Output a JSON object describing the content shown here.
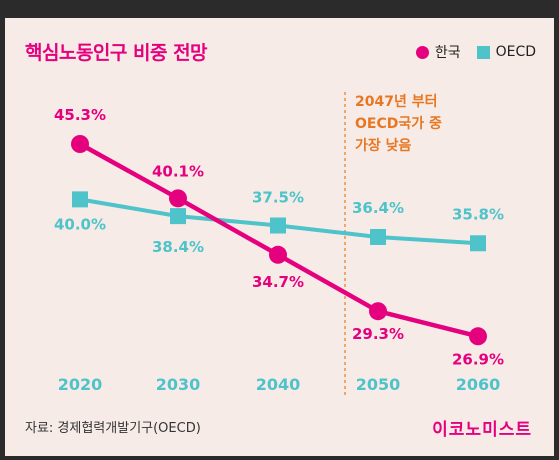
{
  "title": "핵심노동인구 비중 전망",
  "legend": {
    "korea": "한국",
    "oecd": "OECD"
  },
  "annotation": [
    "2047년 부터",
    "OECD국가 중",
    "가장 낮음"
  ],
  "source": "자료: 경제협력개발기구(OECD)",
  "brand": "이코노미스트",
  "colors": {
    "korea": "#e5007e",
    "oecd": "#4ec3c9",
    "annotation": "#e87722",
    "xtick": "#4ec3c9"
  },
  "chart_data": {
    "type": "line",
    "x": [
      "2020",
      "2030",
      "2040",
      "2050",
      "2060"
    ],
    "series": [
      {
        "name": "한국",
        "values": [
          45.3,
          40.1,
          34.7,
          29.3,
          26.9
        ],
        "labels": [
          "45.3%",
          "40.1%",
          "34.7%",
          "29.3%",
          "26.9%"
        ]
      },
      {
        "name": "OECD",
        "values": [
          40.0,
          38.4,
          37.5,
          36.4,
          35.8
        ],
        "labels": [
          "40.0%",
          "38.4%",
          "37.5%",
          "36.4%",
          "35.8%"
        ]
      }
    ]
  }
}
